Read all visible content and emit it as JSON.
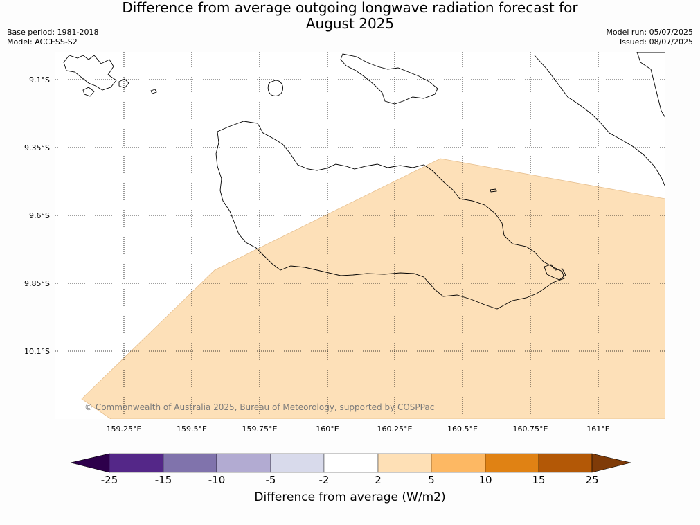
{
  "title_line1": "Difference from average outgoing longwave radiation forecast for",
  "title_line2": "August 2025",
  "base_period": "Base period: 1981-2018",
  "model": "Model: ACCESS-S2",
  "model_run": "Model run: 05/07/2025",
  "issued": "Issued: 08/07/2025",
  "copyright": "© Commonwealth of Australia 2025, Bureau of Meteorology, supported by COSPPac",
  "lat_labels": [
    "9.1°S",
    "9.35°S",
    "9.6°S",
    "9.85°S",
    "10.1°S"
  ],
  "lon_labels": [
    "159.25°E",
    "159.5°E",
    "159.75°E",
    "160°E",
    "160.25°E",
    "160.5°E",
    "160.75°E",
    "161°E"
  ],
  "colorbar": {
    "label": "Difference from average (W/m2)",
    "ticks": [
      "-25",
      "-15",
      "-10",
      "-5",
      "-2",
      "2",
      "5",
      "10",
      "15",
      "25"
    ],
    "colors": [
      "#2d004b",
      "#542788",
      "#8073ac",
      "#b2abd2",
      "#d8daeb",
      "#ffffff",
      "#fee0b6",
      "#fdb863",
      "#e08214",
      "#b35806",
      "#7f3b08"
    ]
  },
  "forecast_fill": {
    "category": "2 to 5",
    "color": "#fde0b8"
  }
}
